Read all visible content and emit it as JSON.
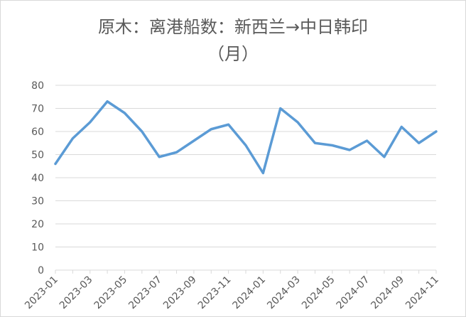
{
  "chart_data": {
    "type": "line",
    "title": [
      "原木：离港船数：新西兰→中日韩印",
      "（月）"
    ],
    "categories": [
      "2023-01",
      null,
      "2023-03",
      null,
      "2023-05",
      null,
      "2023-07",
      null,
      "2023-09",
      null,
      "2023-11",
      null,
      "2024-01",
      null,
      "2024-03",
      null,
      "2024-05",
      null,
      "2024-07",
      null,
      "2024-09",
      null,
      "2024-11"
    ],
    "series": [
      {
        "color": "#5b9bd5",
        "values": [
          46,
          57,
          64,
          73,
          68,
          60,
          49,
          51,
          56,
          61,
          63,
          54,
          42,
          70,
          64,
          55,
          54,
          52,
          56,
          49,
          62,
          55,
          60
        ]
      }
    ],
    "ylim": [
      0,
      80
    ],
    "yticks": [
      0,
      10,
      20,
      30,
      40,
      50,
      60,
      70,
      80
    ],
    "grid": true
  }
}
